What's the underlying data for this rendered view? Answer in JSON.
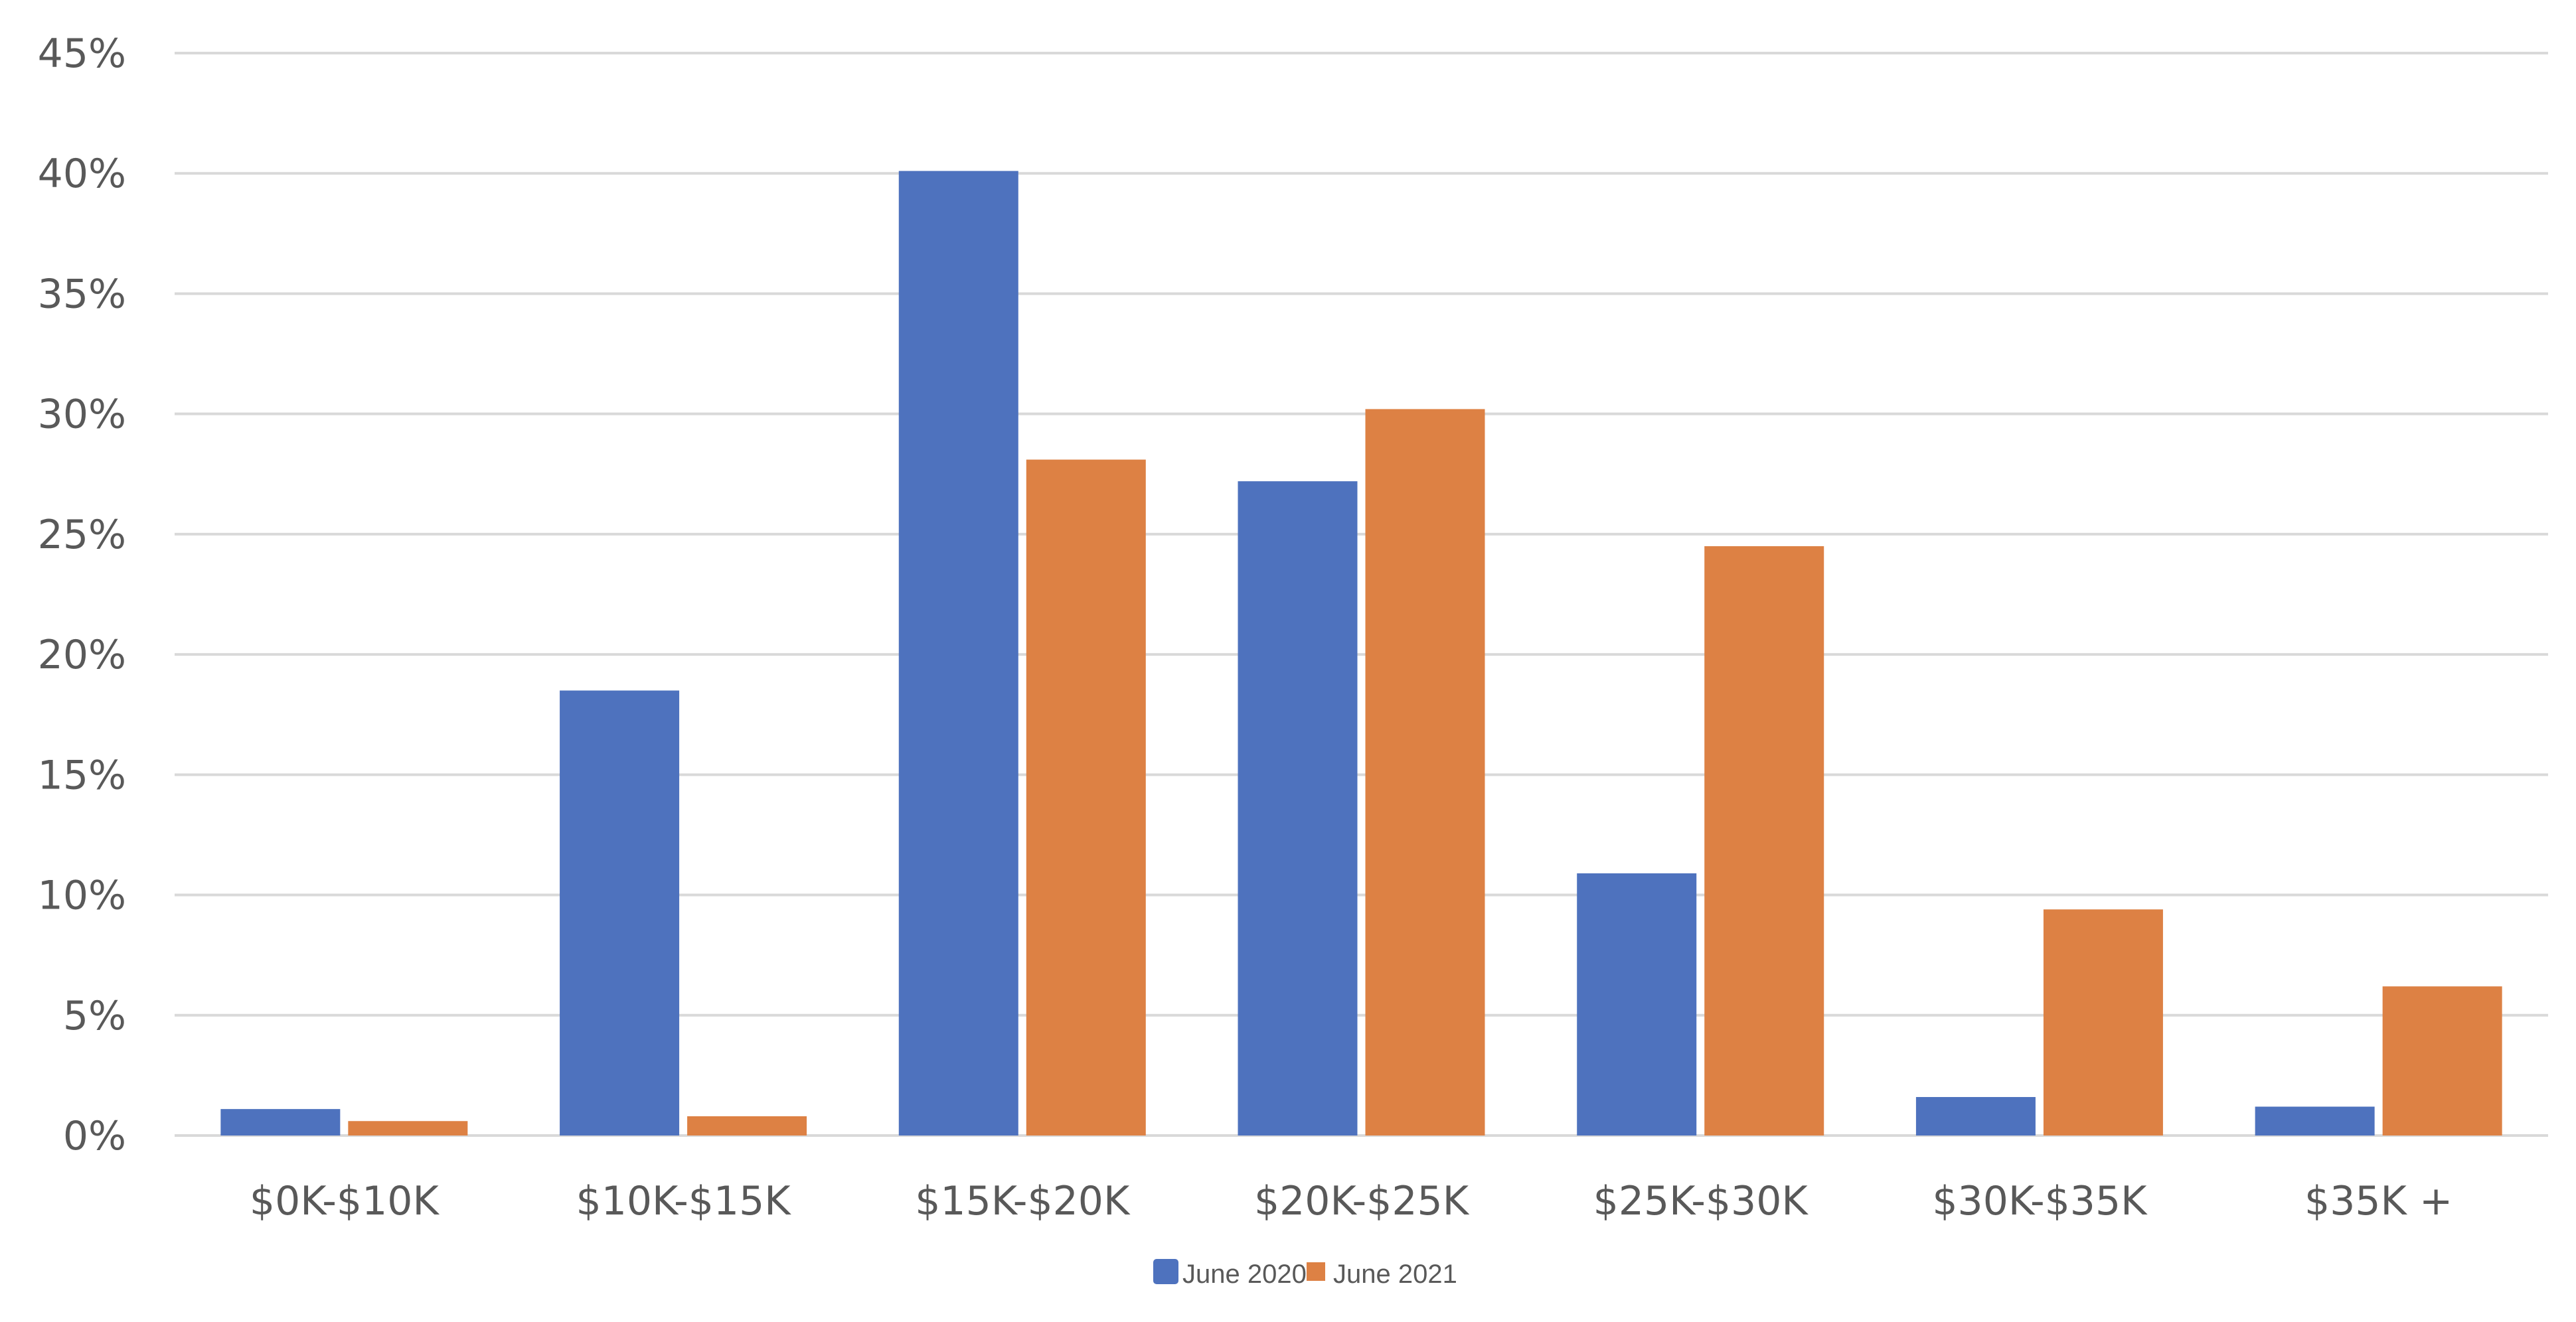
{
  "chart_data": {
    "type": "bar",
    "title": "",
    "xlabel": "",
    "ylabel": "",
    "categories": [
      "$0K-$10K",
      "$10K-$15K",
      "$15K-$20K",
      "$20K-$25K",
      "$25K-$30K",
      "$30K-$35K",
      "$35K +"
    ],
    "series": [
      {
        "name": "June 2020",
        "color": "#4E72BE",
        "values": [
          1.1,
          18.5,
          40.1,
          27.2,
          10.9,
          1.6,
          1.2
        ]
      },
      {
        "name": "June 2021",
        "color": "#DD8144",
        "values": [
          0.6,
          0.8,
          28.1,
          30.2,
          24.5,
          9.4,
          6.2
        ]
      }
    ],
    "ylim": [
      0,
      45
    ],
    "yticks": [
      0,
      5,
      10,
      15,
      20,
      25,
      30,
      35,
      40,
      45
    ],
    "ytick_labels": [
      "0%",
      "5%",
      "10%",
      "15%",
      "20%",
      "25%",
      "30%",
      "35%",
      "40%",
      "45%"
    ],
    "grid": true,
    "gridline_color": "#D9D9D9",
    "legend_position": "bottom"
  },
  "legend": {
    "items": [
      {
        "label": "June 2020",
        "color": "#4E72BE"
      },
      {
        "label": "June 2021",
        "color": "#DD8144"
      }
    ]
  }
}
